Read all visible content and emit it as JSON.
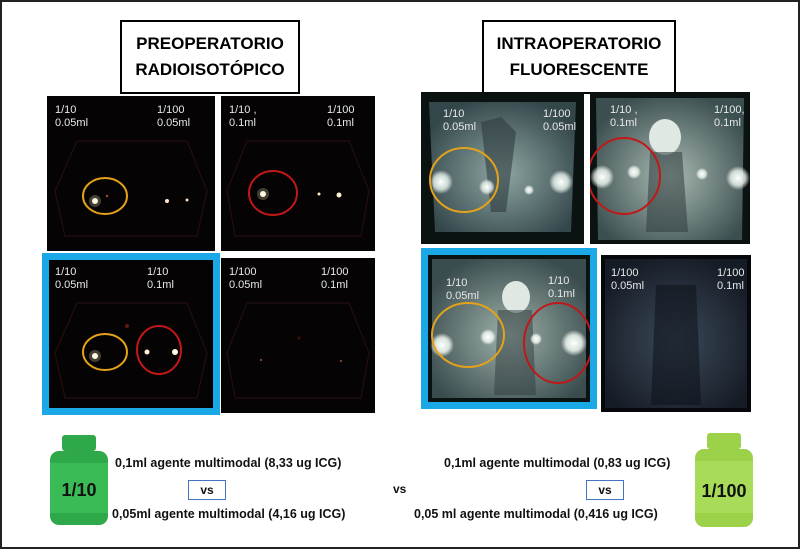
{
  "titles": {
    "left_line1": "PREOPERATORIO",
    "left_line2": "RADIOISOTÓPICO",
    "right_line1": "INTRAOPERATORIO",
    "right_line2": "FLUORESCENTE"
  },
  "panels": {
    "pre_tl": {
      "a_line1": "1/10",
      "a_line2": "0.05ml",
      "b_line1": "1/100",
      "b_line2": "0.05ml"
    },
    "pre_tr": {
      "a_line1": "1/10 ,",
      "a_line2": "0.1ml",
      "b_line1": "1/100",
      "b_line2": "0.1ml"
    },
    "pre_bl": {
      "a_line1": "1/10",
      "a_line2": "0.05ml",
      "b_line1": "1/10",
      "b_line2": "0.1ml"
    },
    "pre_br": {
      "a_line1": "1/100",
      "a_line2": "0.05ml",
      "b_line1": "1/100",
      "b_line2": "0.1ml"
    },
    "int_tl": {
      "a_line1": "1/10",
      "a_line2": "0.05ml",
      "b_line1": "1/100",
      "b_line2": "0.05ml"
    },
    "int_tr": {
      "a_line1": "1/10 ,",
      "a_line2": "0.1ml",
      "b_line1": "1/100,",
      "b_line2": "0.1ml"
    },
    "int_bl": {
      "a_line1": "1/10",
      "a_line2": "0.05ml",
      "b_line1": "1/10",
      "b_line2": "0.1ml"
    },
    "int_br": {
      "a_line1": "1/100",
      "a_line2": "0.05ml",
      "b_line1": "1/100",
      "b_line2": "0.1ml"
    }
  },
  "bottles": {
    "left_label": "1/10",
    "right_label": "1/100"
  },
  "bottom": {
    "left_line1": "0,1ml agente multimodal (8,33 ug ICG)",
    "left_vs": "vs",
    "left_line2": "0,05ml agente multimodal (4,16 ug ICG)",
    "center_vs": "vs",
    "right_line1": "0,1ml agente multimodal (0,83 ug ICG)",
    "right_vs": "vs",
    "right_line2": "0,05 ml agente multimodal (0,416 ug ICG)"
  },
  "colors": {
    "highlight_blue": "#1aa8e6",
    "circle_orange": "#e3a21a",
    "circle_red": "#c01818",
    "bottle_dark_green": "#2fa84a",
    "bottle_light_green": "#9bd24a",
    "vs_border": "#4472c4"
  }
}
